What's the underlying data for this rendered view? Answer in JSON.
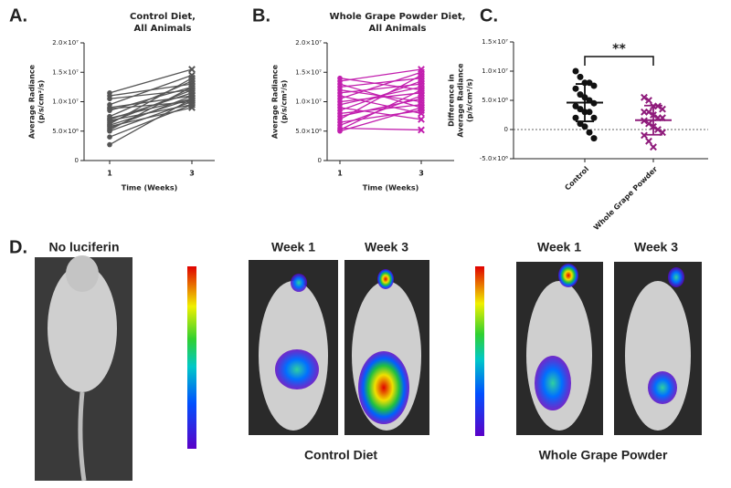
{
  "chart_data": [
    {
      "type": "line",
      "panel": "A.",
      "title": [
        "Control Diet,",
        "All Animals"
      ],
      "ylabel": [
        "Average Radiance",
        "(p/s/cm²/s)"
      ],
      "xlabel": "Time (Weeks)",
      "categories": [
        "1",
        "3"
      ],
      "color": "#555555",
      "ylim": [
        0,
        20000000
      ],
      "yticks": [
        0,
        {
          "value": 5000000,
          "label": "5.0×10⁶"
        },
        {
          "value": 10000000,
          "label": "1.0×10⁷"
        },
        {
          "value": 15000000,
          "label": "1.5×10⁷"
        },
        {
          "value": 20000000,
          "label": "2.0×10⁷"
        }
      ],
      "series": [
        {
          "values": [
            11500000,
            15500000
          ]
        },
        {
          "values": [
            11000000,
            13000000
          ]
        },
        {
          "values": [
            10500000,
            12000000
          ]
        },
        {
          "values": [
            9500000,
            14500000
          ]
        },
        {
          "values": [
            9000000,
            11000000
          ]
        },
        {
          "values": [
            8800000,
            10000000
          ]
        },
        {
          "values": [
            8500000,
            12500000
          ]
        },
        {
          "values": [
            7500000,
            13500000
          ]
        },
        {
          "values": [
            7200000,
            10500000
          ]
        },
        {
          "values": [
            7000000,
            11500000
          ]
        },
        {
          "values": [
            6800000,
            9500000
          ]
        },
        {
          "values": [
            6500000,
            12000000
          ]
        },
        {
          "values": [
            6200000,
            14000000
          ]
        },
        {
          "values": [
            6000000,
            10500000
          ]
        },
        {
          "values": [
            5800000,
            9000000
          ]
        },
        {
          "values": [
            5500000,
            11000000
          ]
        },
        {
          "values": [
            5200000,
            12500000
          ]
        },
        {
          "values": [
            5000000,
            10000000
          ]
        },
        {
          "values": [
            4000000,
            9500000
          ]
        },
        {
          "values": [
            2700000,
            10500000
          ]
        }
      ]
    },
    {
      "type": "line",
      "panel": "B.",
      "title": [
        "Whole Grape Powder Diet,",
        "All Animals"
      ],
      "ylabel": [
        "Average Radiance",
        "(p/s/cm²/s)"
      ],
      "xlabel": "Time (Weeks)",
      "categories": [
        "1",
        "3"
      ],
      "color": "#c21fae",
      "ylim": [
        0,
        20000000
      ],
      "yticks": [
        0,
        {
          "value": 5000000,
          "label": "5.0×10⁶"
        },
        {
          "value": 10000000,
          "label": "1.0×10⁷"
        },
        {
          "value": 15000000,
          "label": "1.5×10⁷"
        },
        {
          "value": 20000000,
          "label": "2.0×10⁷"
        }
      ],
      "series": [
        {
          "values": [
            14000000,
            12000000
          ]
        },
        {
          "values": [
            13500000,
            15500000
          ]
        },
        {
          "values": [
            13000000,
            9000000
          ]
        },
        {
          "values": [
            12500000,
            14000000
          ]
        },
        {
          "values": [
            12000000,
            10000000
          ]
        },
        {
          "values": [
            11500000,
            13000000
          ]
        },
        {
          "values": [
            11000000,
            8000000
          ]
        },
        {
          "values": [
            10500000,
            15000000
          ]
        },
        {
          "values": [
            10000000,
            11500000
          ]
        },
        {
          "values": [
            9500000,
            12500000
          ]
        },
        {
          "values": [
            9000000,
            7000000
          ]
        },
        {
          "values": [
            8500000,
            13500000
          ]
        },
        {
          "values": [
            8000000,
            9500000
          ]
        },
        {
          "values": [
            7500000,
            10500000
          ]
        },
        {
          "values": [
            7000000,
            14500000
          ]
        },
        {
          "values": [
            6500000,
            8500000
          ]
        },
        {
          "values": [
            6000000,
            11000000
          ]
        },
        {
          "values": [
            5500000,
            5200000
          ]
        },
        {
          "values": [
            5200000,
            12000000
          ]
        },
        {
          "values": [
            5000000,
            9000000
          ]
        }
      ]
    },
    {
      "type": "dot",
      "panel": "C.",
      "ylabel": [
        "Difference in",
        "Average Radiance",
        "(p/s/cm²/s)"
      ],
      "categories": [
        "Control",
        "Whole Grape Powder"
      ],
      "colors": [
        "#111111",
        "#8e1a7a"
      ],
      "annotation": "**",
      "ylim": [
        -5000000,
        15000000
      ],
      "yticks": [
        {
          "value": -5000000,
          "label": "-5.0×10⁶"
        },
        0,
        {
          "value": 5000000,
          "label": "5.0×10⁶"
        },
        {
          "value": 10000000,
          "label": "1.0×10⁷"
        },
        {
          "value": 15000000,
          "label": "1.5×10⁷"
        }
      ],
      "values": [
        [
          10000000,
          9000000,
          8000000,
          8000000,
          7500000,
          7000000,
          6000000,
          5500000,
          5000000,
          4500000,
          4000000,
          3500000,
          3000000,
          3000000,
          2000000,
          2000000,
          1000000,
          500000,
          -500000,
          -1500000
        ],
        [
          5500000,
          5000000,
          4000000,
          4000000,
          3500000,
          3000000,
          3000000,
          2500000,
          2000000,
          2000000,
          1500000,
          1000000,
          500000,
          0,
          -500000,
          -1000000,
          -2000000,
          -3000000
        ]
      ],
      "means": [
        4600000,
        1600000
      ],
      "sds": [
        3200000,
        2500000
      ]
    }
  ],
  "panel_d": {
    "label": "D.",
    "no_luciferin": "No luciferin",
    "control": {
      "week1": "Week 1",
      "week3": "Week 3",
      "title": "Control Diet"
    },
    "grape": {
      "week1": "Week 1",
      "week3": "Week 3",
      "title": "Whole Grape Powder"
    }
  }
}
